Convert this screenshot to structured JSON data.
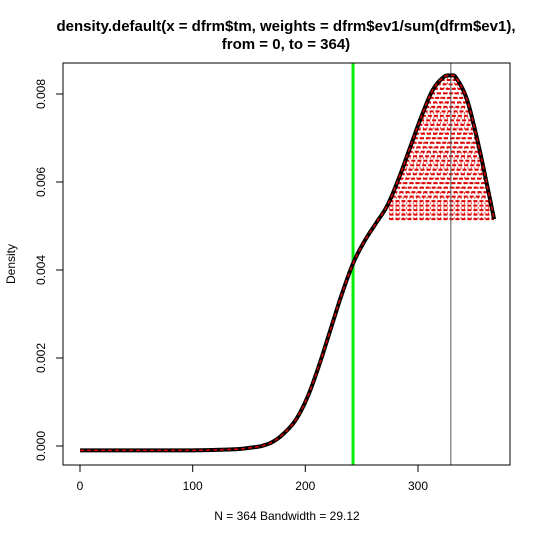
{
  "chart_data": {
    "type": "line",
    "title_line1": "density.default(x = dfrm$tm, weights = dfrm$ev1/sum(dfrm$ev1),",
    "title_line2": "from = 0, to = 364)",
    "xlabel": "N = 364   Bandwidth = 29.12",
    "ylabel": "Density",
    "xlim": [
      -15,
      378
    ],
    "ylim": [
      -0.00033,
      0.00871
    ],
    "xticks": [
      0,
      100,
      200,
      300
    ],
    "yticks": [
      "0.000",
      "0.002",
      "0.004",
      "0.006",
      "0.008"
    ],
    "yticks_values": [
      0,
      0.002,
      0.004,
      0.006,
      0.008
    ],
    "grid": false,
    "series": [
      {
        "x": [
          0,
          20,
          40,
          60,
          80,
          100,
          120,
          140,
          150,
          160,
          170,
          180,
          190,
          200,
          210,
          220,
          230,
          240,
          250,
          260,
          270,
          280,
          290,
          300,
          310,
          320,
          326,
          330,
          340,
          350,
          360,
          364
        ],
        "y": [
          0,
          0,
          0,
          0,
          0,
          0,
          1e-05,
          3e-05,
          6e-05,
          0.0001,
          0.0002,
          0.0004,
          0.0007,
          0.0012,
          0.0019,
          0.0027,
          0.0035,
          0.0042,
          0.0047,
          0.0051,
          0.0055,
          0.0061,
          0.0068,
          0.0075,
          0.0081,
          0.0084,
          0.00843,
          0.0084,
          0.0079,
          0.0069,
          0.0057,
          0.0052
        ]
      }
    ],
    "vertical_lines": [
      {
        "x": 240,
        "color": "#00ee00"
      },
      {
        "x": 326,
        "color": "#555555"
      }
    ],
    "fill_from_x": 272,
    "colors": {
      "density_line": "#000000",
      "overlay_dashed": "#dd0000",
      "fill_hatch": "#dd0000"
    }
  }
}
